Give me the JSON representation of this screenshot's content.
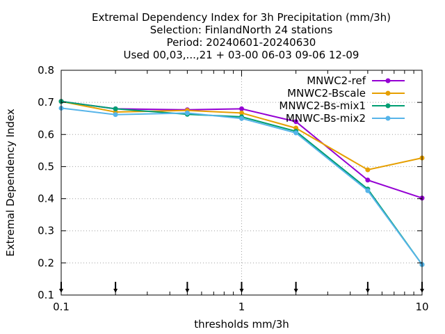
{
  "chart_data": {
    "type": "line",
    "title_lines": [
      "Extremal Dependency Index  for 3h Precipitation (mm/3h)",
      "Selection: FinlandNorth     24 stations",
      "Period: 20240601-20240630",
      "Used 00,03,...,21 + 03-00 06-03 09-06 12-09"
    ],
    "xlabel": "thresholds mm/3h",
    "ylabel": "Extremal Dependency Index",
    "x_scale": "log",
    "xlim": [
      0.1,
      10
    ],
    "ylim": [
      0.1,
      0.8
    ],
    "x_ticks": [
      0.1,
      1,
      10
    ],
    "x_tick_labels": [
      "0.1",
      "1",
      "10"
    ],
    "y_ticks": [
      0.1,
      0.2,
      0.3,
      0.4,
      0.5,
      0.6,
      0.7,
      0.8
    ],
    "y_tick_labels": [
      "0.1",
      "0.2",
      "0.3",
      "0.4",
      "0.5",
      "0.6",
      "0.7",
      "0.8"
    ],
    "grid": true,
    "legend_position": "top-right",
    "x": [
      0.1,
      0.2,
      0.5,
      1,
      2,
      5,
      10
    ],
    "threshold_markers": [
      0.1,
      0.2,
      0.5,
      1,
      2,
      5,
      10
    ],
    "series": [
      {
        "name": "MNWC2-ref",
        "color": "#9400d3",
        "values": [
          0.703,
          0.68,
          0.677,
          0.68,
          0.64,
          0.458,
          0.402
        ]
      },
      {
        "name": "MNWC2-Bscale",
        "color": "#e69f00",
        "values": [
          0.703,
          0.67,
          0.675,
          0.667,
          0.62,
          0.49,
          0.527
        ]
      },
      {
        "name": "MNWC2-Bs-mix1",
        "color": "#009e73",
        "values": [
          0.703,
          0.68,
          0.663,
          0.655,
          0.61,
          0.43,
          0.195
        ]
      },
      {
        "name": "MNWC-Bs-mix2",
        "color": "#56b4e9",
        "values": [
          0.682,
          0.662,
          0.667,
          0.65,
          0.605,
          0.425,
          0.195
        ]
      }
    ]
  }
}
